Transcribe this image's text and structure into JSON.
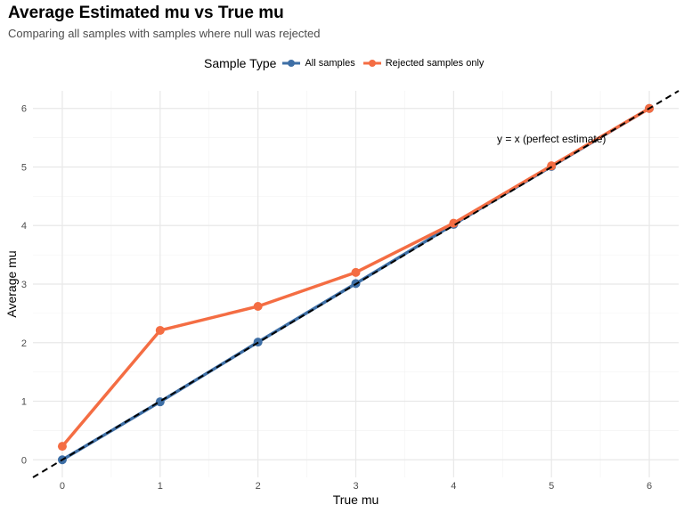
{
  "chart_data": {
    "type": "line",
    "title": "Average Estimated mu vs True mu",
    "subtitle": "Comparing all samples with samples where null was rejected",
    "xlabel": "True mu",
    "ylabel": "Average mu",
    "x": [
      0,
      1,
      2,
      3,
      4,
      5,
      6
    ],
    "xlim": [
      -0.3,
      6.3
    ],
    "ylim": [
      -0.3,
      6.3
    ],
    "xticks": [
      "0",
      "1",
      "2",
      "3",
      "4",
      "5",
      "6"
    ],
    "yticks": [
      "0",
      "1",
      "2",
      "3",
      "4",
      "5",
      "6"
    ],
    "grid": true,
    "legend": {
      "title": "Sample Type",
      "position": "top"
    },
    "series": [
      {
        "name": "All samples",
        "color": "#3e6fa6",
        "values": [
          0.0,
          0.99,
          2.01,
          3.01,
          4.02,
          5.01,
          6.0
        ]
      },
      {
        "name": "Rejected samples only",
        "color": "#f46d43",
        "values": [
          0.23,
          2.21,
          2.62,
          3.2,
          4.04,
          5.02,
          6.0
        ]
      }
    ],
    "reference_line": {
      "label": "y = x (perfect estimate)",
      "slope": 1,
      "intercept": 0,
      "color": "#000000",
      "style": "dashed"
    },
    "annotation": {
      "text": "y = x (perfect estimate)",
      "x": 5.0,
      "y": 5.48
    }
  }
}
